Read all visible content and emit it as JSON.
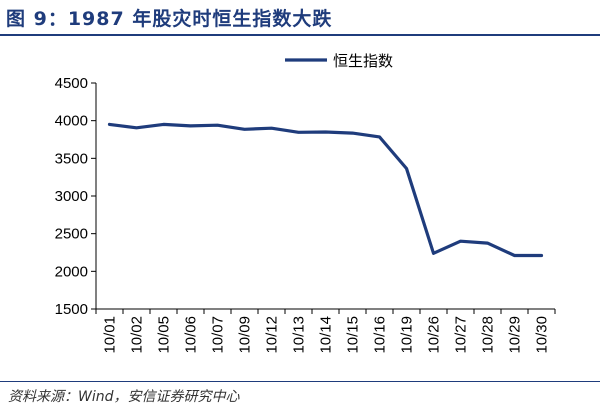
{
  "title": "图 9：1987 年股灾时恒生指数大跌",
  "source": "资料来源：Wind，安信证券研究中心",
  "colors": {
    "accent": "#1f3c7c",
    "series": "#1f3c7c",
    "axis": "#000000"
  },
  "chart_data": {
    "type": "line",
    "title": "图 9：1987 年股灾时恒生指数大跌",
    "xlabel": "",
    "ylabel": "",
    "ylim": [
      1500,
      4500
    ],
    "yticks": [
      1500,
      2000,
      2500,
      3000,
      3500,
      4000,
      4500
    ],
    "grid": false,
    "legend_position": "top-right",
    "categories": [
      "10/01",
      "10/02",
      "10/05",
      "10/06",
      "10/07",
      "10/09",
      "10/12",
      "10/13",
      "10/14",
      "10/15",
      "10/16",
      "10/19",
      "10/26",
      "10/27",
      "10/28",
      "10/29",
      "10/30"
    ],
    "series": [
      {
        "name": "恒生指数",
        "values": [
          3950,
          3905,
          3950,
          3930,
          3940,
          3885,
          3900,
          3845,
          3850,
          3835,
          3785,
          3365,
          2240,
          2400,
          2375,
          2210,
          2210
        ]
      }
    ]
  }
}
